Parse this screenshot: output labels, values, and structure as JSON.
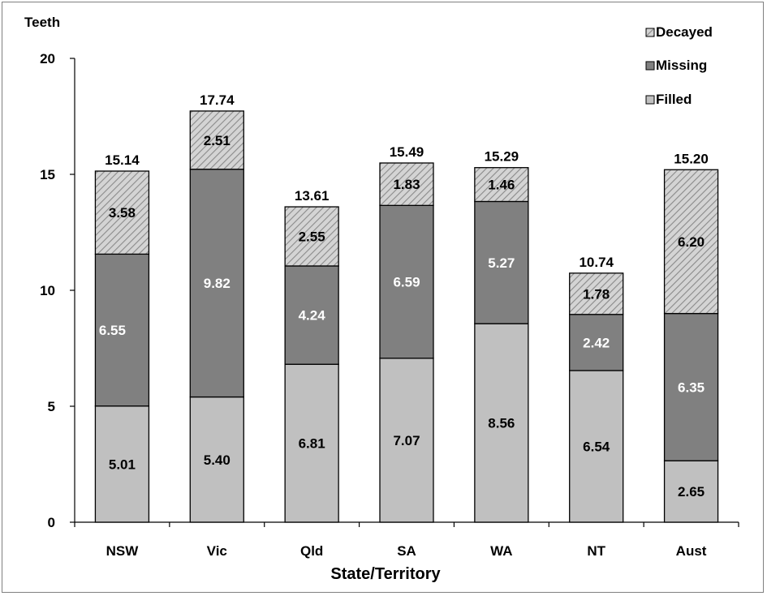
{
  "chart_data": {
    "type": "bar",
    "stacked": true,
    "ylabel": "Teeth",
    "xlabel": "State/Territory",
    "ylim": [
      0,
      20
    ],
    "yticks": [
      0,
      5,
      10,
      15,
      20
    ],
    "grid": false,
    "legend_position": "top-right",
    "categories": [
      "NSW",
      "Vic",
      "Qld",
      "SA",
      "WA",
      "NT",
      "Aust"
    ],
    "series": [
      {
        "name": "Filled",
        "values": [
          5.01,
          5.4,
          6.81,
          7.07,
          8.56,
          6.54,
          2.65
        ],
        "labels": [
          "5.01",
          "5.40",
          "6.81",
          "7.07",
          "8.56",
          "6.54",
          "2.65"
        ],
        "color": "#c0c0c0",
        "pattern": "solid"
      },
      {
        "name": "Missing",
        "values": [
          6.55,
          9.82,
          4.24,
          6.59,
          5.27,
          2.42,
          6.35
        ],
        "labels": [
          "6.55",
          "9.82",
          "4.24",
          "6.59",
          "5.27",
          "2.42",
          "6.35"
        ],
        "color": "#808080",
        "pattern": "solid"
      },
      {
        "name": "Decayed",
        "values": [
          3.58,
          2.51,
          2.55,
          1.83,
          1.46,
          1.78,
          6.2
        ],
        "labels": [
          "3.58",
          "2.51",
          "2.55",
          "1.83",
          "1.46",
          "1.78",
          "6.20"
        ],
        "color": "#c0c0c0",
        "pattern": "hatched"
      }
    ],
    "totals": [
      "15.14",
      "17.74",
      "13.61",
      "15.49",
      "15.29",
      "10.74",
      "15.20"
    ],
    "legend": [
      "Decayed",
      "Missing",
      "Filled"
    ]
  }
}
